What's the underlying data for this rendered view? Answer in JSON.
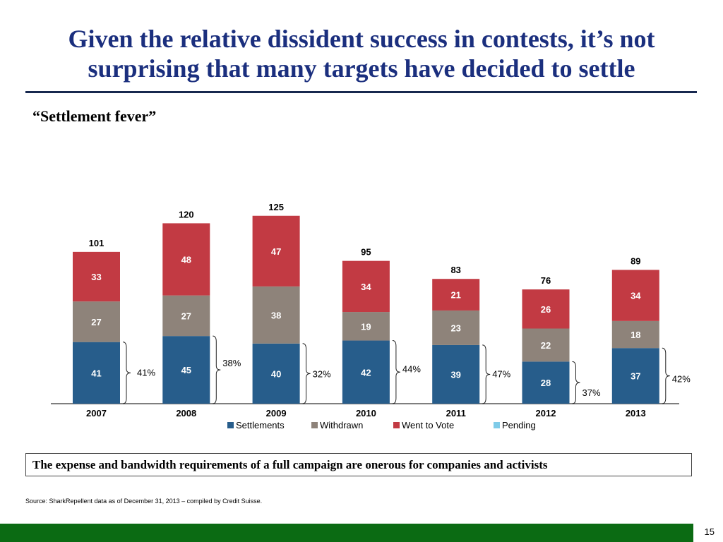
{
  "slide": {
    "title": "Given the relative dissident success in contests, it’s not surprising that many targets have decided to settle",
    "subtitle": "“Settlement fever”",
    "callout": "The expense and bandwidth requirements of a full campaign are onerous for companies and activists",
    "source": "Source: SharkRepellent data as of December 31, 2013 – compiled by Credit Suisse.",
    "page_number": "15",
    "footer_color": "#0b6b13",
    "title_color": "#1b2f7e"
  },
  "chart_data": {
    "type": "bar",
    "stacked": true,
    "categories": [
      "2007",
      "2008",
      "2009",
      "2010",
      "2011",
      "2012",
      "2013"
    ],
    "series": [
      {
        "name": "Settlements",
        "color": "#275d8b",
        "values": [
          41,
          45,
          40,
          42,
          39,
          28,
          37
        ]
      },
      {
        "name": "Withdrawn",
        "color": "#8e837a",
        "values": [
          27,
          27,
          38,
          19,
          23,
          22,
          18
        ]
      },
      {
        "name": "Went to Vote",
        "color": "#c23a43",
        "values": [
          33,
          48,
          47,
          34,
          21,
          26,
          34
        ]
      },
      {
        "name": "Pending",
        "color": "#7ecbe8",
        "values": [
          0,
          0,
          0,
          0,
          0,
          0,
          0
        ]
      }
    ],
    "totals": [
      101,
      120,
      125,
      95,
      83,
      76,
      89
    ],
    "settlement_share": [
      "41%",
      "38%",
      "32%",
      "44%",
      "47%",
      "37%",
      "42%"
    ],
    "legend_position": "bottom",
    "grid": false
  }
}
